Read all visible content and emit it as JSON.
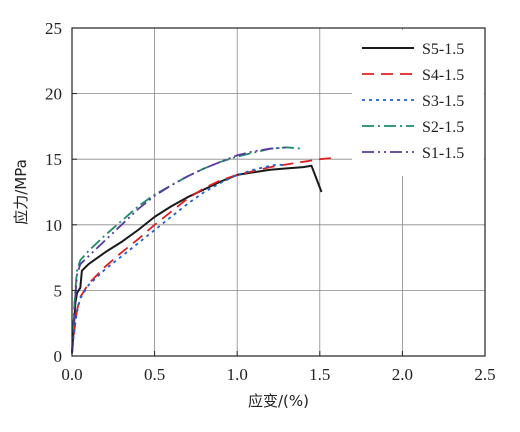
{
  "chart_data": {
    "type": "line",
    "title": "",
    "xlabel": "应变/(%)",
    "ylabel": "应力/MPa",
    "xlim": [
      0,
      2.5
    ],
    "ylim": [
      0,
      25
    ],
    "x_ticks": [
      "0.0",
      "0.5",
      "1.0",
      "1.5",
      "2.0",
      "2.5"
    ],
    "y_ticks": [
      "0",
      "5",
      "10",
      "15",
      "20",
      "25"
    ],
    "grid": true,
    "legend_position": "top-right",
    "series": [
      {
        "name": "S5-1.5",
        "color": "#1a1a1a",
        "dash": "solid",
        "points": [
          [
            0,
            0.2
          ],
          [
            0.01,
            2.0
          ],
          [
            0.02,
            4.0
          ],
          [
            0.03,
            4.8
          ],
          [
            0.05,
            5.2
          ],
          [
            0.06,
            6.5
          ],
          [
            0.1,
            7.0
          ],
          [
            0.2,
            7.9
          ],
          [
            0.3,
            8.7
          ],
          [
            0.4,
            9.6
          ],
          [
            0.5,
            10.6
          ],
          [
            0.6,
            11.4
          ],
          [
            0.7,
            12.1
          ],
          [
            0.8,
            12.7
          ],
          [
            0.9,
            13.3
          ],
          [
            1.0,
            13.8
          ],
          [
            1.1,
            14.0
          ],
          [
            1.2,
            14.2
          ],
          [
            1.3,
            14.3
          ],
          [
            1.4,
            14.4
          ],
          [
            1.45,
            14.5
          ],
          [
            1.48,
            13.5
          ],
          [
            1.51,
            12.5
          ]
        ]
      },
      {
        "name": "S4-1.5",
        "color": "#e02020",
        "dash": "dashed",
        "points": [
          [
            0,
            0.2
          ],
          [
            0.01,
            1.5
          ],
          [
            0.02,
            2.5
          ],
          [
            0.03,
            3.5
          ],
          [
            0.05,
            4.5
          ],
          [
            0.1,
            5.5
          ],
          [
            0.2,
            6.8
          ],
          [
            0.3,
            7.9
          ],
          [
            0.4,
            8.9
          ],
          [
            0.5,
            10.0
          ],
          [
            0.6,
            11.0
          ],
          [
            0.7,
            12.0
          ],
          [
            0.8,
            12.8
          ],
          [
            0.9,
            13.4
          ],
          [
            1.0,
            13.8
          ],
          [
            1.1,
            14.1
          ],
          [
            1.2,
            14.4
          ],
          [
            1.3,
            14.6
          ],
          [
            1.4,
            14.8
          ],
          [
            1.5,
            15.0
          ],
          [
            1.58,
            15.1
          ]
        ]
      },
      {
        "name": "S3-1.5",
        "color": "#1f5fd0",
        "dash": "dotted",
        "points": [
          [
            0,
            0.2
          ],
          [
            0.01,
            1.5
          ],
          [
            0.02,
            2.5
          ],
          [
            0.03,
            3.4
          ],
          [
            0.05,
            4.4
          ],
          [
            0.1,
            5.4
          ],
          [
            0.2,
            6.6
          ],
          [
            0.3,
            7.6
          ],
          [
            0.4,
            8.6
          ],
          [
            0.5,
            9.6
          ],
          [
            0.6,
            10.6
          ],
          [
            0.7,
            11.6
          ],
          [
            0.8,
            12.5
          ],
          [
            0.9,
            13.2
          ],
          [
            1.0,
            13.8
          ],
          [
            1.1,
            14.2
          ],
          [
            1.2,
            14.5
          ],
          [
            1.25,
            14.6
          ],
          [
            1.3,
            14.5
          ]
        ]
      },
      {
        "name": "S2-1.5",
        "color": "#1a8a6a",
        "dash": "dashdot",
        "points": [
          [
            0,
            0.2
          ],
          [
            0.01,
            3.0
          ],
          [
            0.02,
            5.0
          ],
          [
            0.03,
            6.5
          ],
          [
            0.05,
            7.3
          ],
          [
            0.1,
            8.0
          ],
          [
            0.2,
            9.2
          ],
          [
            0.3,
            10.3
          ],
          [
            0.4,
            11.4
          ],
          [
            0.5,
            12.3
          ],
          [
            0.6,
            13.0
          ],
          [
            0.7,
            13.7
          ],
          [
            0.8,
            14.3
          ],
          [
            0.9,
            14.8
          ],
          [
            1.0,
            15.2
          ],
          [
            1.1,
            15.5
          ],
          [
            1.2,
            15.8
          ],
          [
            1.3,
            15.9
          ],
          [
            1.4,
            15.8
          ]
        ]
      },
      {
        "name": "S1-1.5",
        "color": "#5a3aa0",
        "dash": "dashdotdot",
        "points": [
          [
            0,
            0.2
          ],
          [
            0.01,
            2.5
          ],
          [
            0.02,
            4.5
          ],
          [
            0.03,
            6.2
          ],
          [
            0.05,
            7.0
          ],
          [
            0.1,
            7.6
          ],
          [
            0.2,
            8.8
          ],
          [
            0.3,
            10.0
          ],
          [
            0.4,
            11.2
          ],
          [
            0.5,
            12.2
          ],
          [
            0.6,
            13.0
          ],
          [
            0.7,
            13.7
          ],
          [
            0.8,
            14.3
          ],
          [
            0.9,
            14.8
          ],
          [
            1.0,
            15.3
          ],
          [
            1.1,
            15.6
          ],
          [
            1.2,
            15.8
          ],
          [
            1.3,
            15.9
          ]
        ]
      }
    ]
  }
}
